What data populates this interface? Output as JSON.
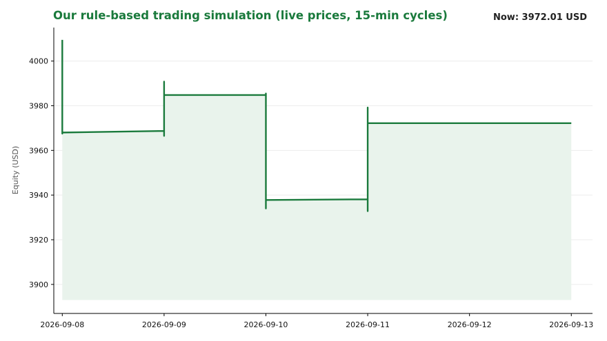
{
  "header": {
    "title": "Our rule-based trading simulation (live prices, 15-min cycles)",
    "now_label": "Now: 3972.01 USD"
  },
  "colors": {
    "line": "#1a7a3c",
    "fill": "#e9f3ec",
    "grid": "#ececec",
    "axis": "#000000"
  },
  "chart_data": {
    "type": "line",
    "title": "Our rule-based trading simulation (live prices, 15-min cycles)",
    "xlabel": "",
    "ylabel": "Equity (USD)",
    "xlim": [
      "2026-09-07T22:00",
      "2026-09-13T05:00"
    ],
    "ylim": [
      3887,
      4015
    ],
    "grid": "horizontal",
    "fill_baseline": 3893,
    "x_ticks": [
      "2026-09-08",
      "2026-09-09",
      "2026-09-10",
      "2026-09-11",
      "2026-09-12",
      "2026-09-13"
    ],
    "y_ticks": [
      3900,
      3920,
      3940,
      3960,
      3980,
      4000
    ],
    "series": [
      {
        "points": [
          {
            "x": "2026-09-08T00:00",
            "y": 4009.5
          },
          {
            "x": "2026-09-08T00:00",
            "y": 3967.5
          },
          {
            "x": "2026-09-08T00:00",
            "y": 3968.0
          },
          {
            "x": "2026-09-09T00:00",
            "y": 3968.7
          },
          {
            "x": "2026-09-09T00:00",
            "y": 3966.5
          },
          {
            "x": "2026-09-09T00:00",
            "y": 3990.8
          },
          {
            "x": "2026-09-09T00:00",
            "y": 3984.8
          },
          {
            "x": "2026-09-10T00:00",
            "y": 3984.8
          },
          {
            "x": "2026-09-10T00:00",
            "y": 3934.0
          },
          {
            "x": "2026-09-10T00:00",
            "y": 3985.5
          },
          {
            "x": "2026-09-10T00:00",
            "y": 3937.8
          },
          {
            "x": "2026-09-11T00:00",
            "y": 3938.1
          },
          {
            "x": "2026-09-11T00:00",
            "y": 3932.8
          },
          {
            "x": "2026-09-11T00:00",
            "y": 3979.2
          },
          {
            "x": "2026-09-11T00:00",
            "y": 3972.2
          },
          {
            "x": "2026-09-13T00:00",
            "y": 3972.2
          }
        ]
      }
    ]
  }
}
